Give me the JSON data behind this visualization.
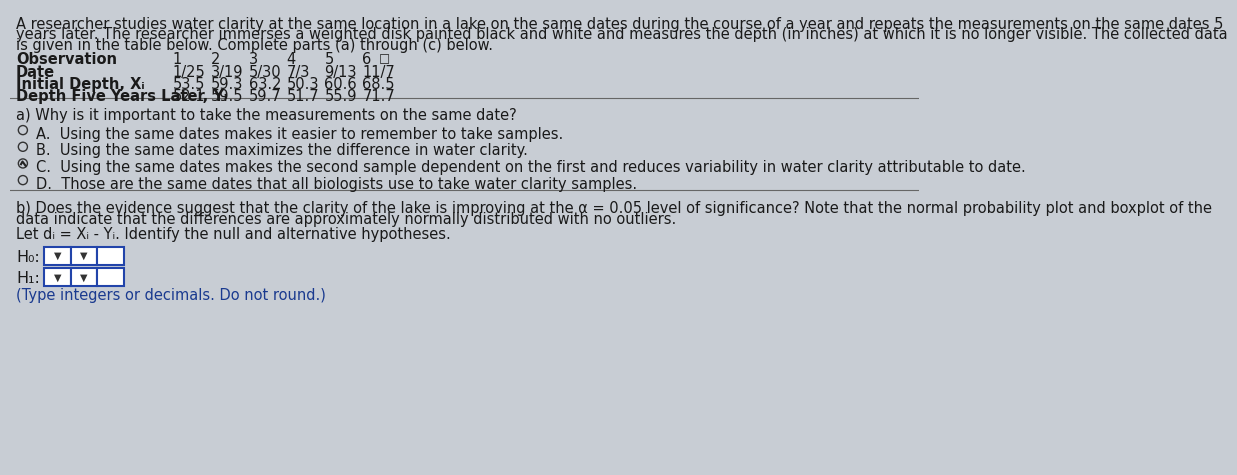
{
  "background_color": "#c8cdd4",
  "text_color": "#1a1a1a",
  "blue_color": "#1a3a6b",
  "title_line1": "A researcher studies water clarity at the same location in a lake on the same dates during the course of a year and repeats the measurements on the same dates 5",
  "title_line2": "years later. The researcher immerses a weighted disk painted black and white and measures the depth (in inches) at which it is no longer visible. The collected data",
  "title_line3": "is given in the table below. Complete parts (a) through (c) below.",
  "obs_label": "Observation",
  "date_label": "Date",
  "initial_label": "Initial Depth, Xᵢ",
  "depth_label": "Depth Five Years Later, Yᵢ",
  "col_numbers": [
    "1",
    "2",
    "3",
    "4",
    "5",
    "6"
  ],
  "col_dates": [
    "1/25",
    "3/19",
    "5/30",
    "7/3",
    "9/13",
    "11/7"
  ],
  "col_initial": [
    "53.5",
    "59.3",
    "63.2",
    "50.3",
    "60.6",
    "68.5"
  ],
  "col_depth": [
    "52.1",
    "59.5",
    "59.7",
    "51.7",
    "55.9",
    "71.7"
  ],
  "part_a_question": "a) Why is it important to take the measurements on the same date?",
  "option_A_text": "A.  Using the same dates makes it easier to remember to take samples.",
  "option_B_text": "B.  Using the same dates maximizes the difference in water clarity.",
  "option_C_text": "C.  Using the same dates makes the second sample dependent on the first and reduces variability in water clarity attributable to date.",
  "option_D_text": "D.  Those are the same dates that all biologists use to take water clarity samples.",
  "part_b_line1": "b) Does the evidence suggest that the clarity of the lake is improving at the α = 0.05 level of significance? Note that the normal probability plot and boxplot of the",
  "part_b_line2": "data indicate that the differences are approximately normally distributed with no outliers.",
  "let_d_text": "Let dᵢ = Xᵢ - Yᵢ. Identify the null and alternative hypotheses.",
  "H0_label": "H₀:",
  "H1_label": "H₁:",
  "type_note": "(Type integers or decimals. Do not round.)",
  "box_border_color": "#2244aa",
  "type_note_color": "#1a3a8f"
}
